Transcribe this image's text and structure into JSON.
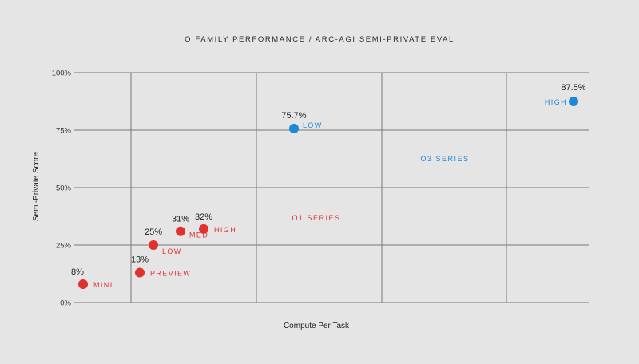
{
  "chart_data": {
    "type": "scatter",
    "title": "O FAMILY PERFORMANCE / ARC-AGI SEMI-PRIVATE EVAL",
    "xlabel": "Compute Per Task",
    "ylabel": "Semi-Private Score",
    "ylim": [
      0,
      100
    ],
    "y_ticks": [
      "0%",
      "25%",
      "50%",
      "75%",
      "100%"
    ],
    "y_tick_values": [
      0,
      25,
      50,
      75,
      100
    ],
    "grid": true,
    "series": [
      {
        "name": "O1 SERIES",
        "color": "#e0312f",
        "points": [
          {
            "name": "MINI",
            "value": 8,
            "value_label": "8%"
          },
          {
            "name": "PREVIEW",
            "value": 13,
            "value_label": "13%"
          },
          {
            "name": "LOW",
            "value": 25,
            "value_label": "25%"
          },
          {
            "name": "MED",
            "value": 31,
            "value_label": "31%"
          },
          {
            "name": "HIGH",
            "value": 32,
            "value_label": "32%"
          }
        ]
      },
      {
        "name": "O3 SERIES",
        "color": "#1e88d8",
        "points": [
          {
            "name": "LOW",
            "value": 75.7,
            "value_label": "75.7%"
          },
          {
            "name": "HIGH",
            "value": 87.5,
            "value_label": "87.5%"
          }
        ]
      }
    ]
  }
}
